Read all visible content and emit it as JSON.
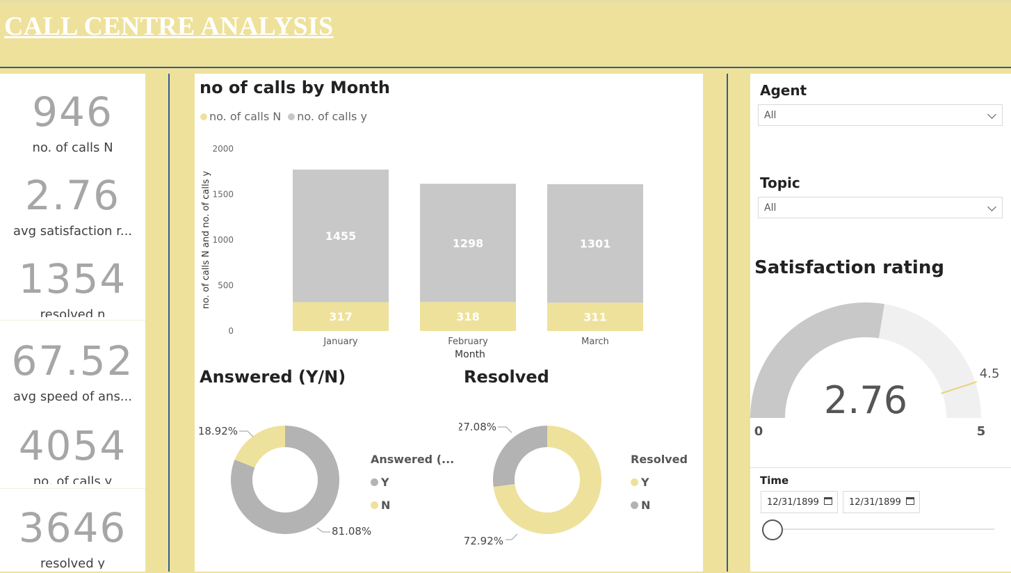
{
  "header": {
    "title": "CALL CENTRE ANALYSIS"
  },
  "kpis": [
    {
      "value": "946",
      "label": "no. of calls N"
    },
    {
      "value": "2.76",
      "label": "avg satisfaction r..."
    },
    {
      "value": "1354",
      "label": "resolved n"
    },
    {
      "value": "67.52",
      "label": "avg speed of ans..."
    },
    {
      "value": "4054",
      "label": "no. of calls y"
    },
    {
      "value": "3646",
      "label": "resolved y"
    }
  ],
  "bar_visual": {
    "title": "no of calls by Month",
    "legend": [
      {
        "name": "no. of calls N",
        "color": "#EEE19B"
      },
      {
        "name": "no. of calls y",
        "color": "#C8C8C8"
      }
    ]
  },
  "answered_visual": {
    "title": "Answered (Y/N)",
    "legend_title": "Answered (...",
    "legend": [
      {
        "name": "Y",
        "color": "#B3B3B3"
      },
      {
        "name": "N",
        "color": "#EEE19B"
      }
    ],
    "labels": {
      "n": "18.92%",
      "y": "81.08%"
    }
  },
  "resolved_visual": {
    "title": "Resolved",
    "legend_title": "Resolved",
    "legend": [
      {
        "name": "Y",
        "color": "#EEE19B"
      },
      {
        "name": "N",
        "color": "#B3B3B3"
      }
    ],
    "labels": {
      "n": "27.08%",
      "y": "72.92%"
    }
  },
  "agent_slicer": {
    "title": "Agent",
    "value": "All"
  },
  "topic_slicer": {
    "title": "Topic",
    "value": "All"
  },
  "gauge": {
    "title": "Satisfaction rating",
    "value": 2.76,
    "value_label": "2.76",
    "min": 0,
    "max": 5,
    "target": 4.5,
    "min_label": "0",
    "max_label": "5",
    "target_label": "4.5"
  },
  "time_slicer": {
    "title": "Time",
    "start": "12/31/1899",
    "end": "12/31/1899"
  },
  "chart_data": [
    {
      "type": "bar",
      "stacked": true,
      "title": "no of calls by Month",
      "categories": [
        "January",
        "February",
        "March"
      ],
      "series": [
        {
          "name": "no. of calls N",
          "values": [
            317,
            318,
            311
          ],
          "color": "#EEE19B"
        },
        {
          "name": "no. of calls y",
          "values": [
            1455,
            1298,
            1301
          ],
          "color": "#C8C8C8"
        }
      ],
      "xlabel": "Month",
      "ylabel": "no. of calls N and no. of calls y",
      "ylim": [
        0,
        2000
      ],
      "yticks": [
        0,
        500,
        1000,
        1500,
        2000
      ],
      "legend": "top-left"
    },
    {
      "type": "pie",
      "donut": true,
      "title": "Answered (Y/N)",
      "categories": [
        "Y",
        "N"
      ],
      "values": [
        81.08,
        18.92
      ],
      "colors": [
        "#B3B3B3",
        "#EEE19B"
      ],
      "legend": "right"
    },
    {
      "type": "pie",
      "donut": true,
      "title": "Resolved",
      "categories": [
        "Y",
        "N"
      ],
      "values": [
        72.92,
        27.08
      ],
      "colors": [
        "#EEE19B",
        "#B3B3B3"
      ],
      "legend": "right"
    }
  ]
}
